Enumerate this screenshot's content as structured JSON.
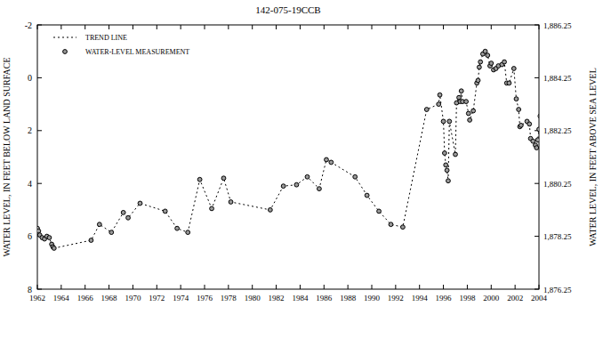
{
  "chart_data": {
    "type": "line",
    "title": "142-075-19CCB",
    "y_label": "WATER LEVEL, IN FEET BELOW LAND SURFACE",
    "y2_label": "WATER LEVEL, IN FEET ABOVE SEA LEVEL",
    "legend": "upper left",
    "grid": false,
    "xlim": [
      1962,
      2004
    ],
    "xticks": [
      1962,
      1964,
      1966,
      1968,
      1970,
      1972,
      1974,
      1976,
      1978,
      1980,
      1982,
      1984,
      1986,
      1988,
      1990,
      1992,
      1994,
      1996,
      1998,
      2000,
      2002,
      2004
    ],
    "ylim": [
      8,
      -2
    ],
    "yticks": [
      -2,
      0,
      2,
      4,
      6,
      8
    ],
    "y2lim": [
      1876.25,
      1886.25
    ],
    "y2ticks": [
      {
        "value": 1876.25,
        "label": "1,876.25"
      },
      {
        "value": 1878.25,
        "label": "1,878.25"
      },
      {
        "value": 1880.25,
        "label": "1,880.25"
      },
      {
        "value": 1882.25,
        "label": "1,882.25"
      },
      {
        "value": 1884.25,
        "label": "1,884.25"
      },
      {
        "value": 1886.25,
        "label": "1,886.25"
      }
    ],
    "x": [
      1962.0,
      1962.1,
      1962.2,
      1962.4,
      1962.6,
      1962.8,
      1963.0,
      1963.2,
      1963.3,
      1963.4,
      1966.5,
      1967.2,
      1968.2,
      1969.2,
      1969.6,
      1970.6,
      1972.7,
      1973.7,
      1974.6,
      1975.6,
      1976.6,
      1977.6,
      1978.2,
      1981.5,
      1982.6,
      1983.7,
      1984.6,
      1985.6,
      1986.2,
      1986.6,
      1988.6,
      1989.6,
      1990.6,
      1991.6,
      1992.6,
      1994.6,
      1995.6,
      1995.7,
      1996.0,
      1996.1,
      1996.2,
      1996.3,
      1996.4,
      1996.5,
      1997.0,
      1997.1,
      1997.3,
      1997.4,
      1997.5,
      1997.6,
      1997.9,
      1998.1,
      1998.2,
      1998.5,
      1998.8,
      1998.9,
      1999.0,
      1999.1,
      1999.3,
      1999.5,
      1999.7,
      1999.9,
      2000.0,
      2000.2,
      2000.4,
      2000.6,
      2000.9,
      2001.1,
      2001.3,
      2001.5,
      2001.9,
      2002.1,
      2002.3,
      2002.4,
      2002.5,
      2003.0,
      2003.2,
      2003.3,
      2003.5,
      2003.7,
      2003.8,
      2003.9,
      2004.0,
      2004.1,
      2004.3
    ],
    "series": [
      {
        "name": "TREND LINE",
        "type": "line",
        "line_style": "dotted",
        "color": "#000000",
        "values": [
          5.7,
          5.8,
          5.95,
          6.05,
          6.1,
          6.0,
          6.05,
          6.3,
          6.4,
          6.45,
          6.15,
          5.55,
          5.85,
          5.1,
          5.3,
          4.75,
          5.05,
          5.7,
          5.85,
          3.85,
          4.95,
          3.8,
          4.7,
          5.0,
          4.1,
          4.05,
          3.75,
          4.2,
          3.1,
          3.2,
          3.75,
          4.45,
          5.05,
          5.55,
          5.65,
          1.2,
          1.0,
          0.65,
          1.65,
          2.85,
          3.3,
          3.5,
          3.9,
          1.65,
          2.9,
          0.95,
          0.75,
          0.9,
          0.5,
          0.9,
          0.9,
          1.35,
          1.6,
          1.25,
          0.2,
          0.1,
          -0.4,
          -0.6,
          -0.9,
          -1.0,
          -0.85,
          -0.45,
          -0.55,
          -0.3,
          -0.35,
          -0.45,
          -0.5,
          -0.6,
          0.2,
          0.2,
          -0.35,
          0.8,
          1.2,
          1.85,
          1.8,
          1.65,
          1.75,
          2.3,
          2.4,
          2.55,
          2.65,
          2.35,
          1.95,
          1.45,
          1.95
        ]
      },
      {
        "name": "WATER-LEVEL MEASUREMENT",
        "type": "scatter",
        "marker": "circle",
        "color": "#9a9a9a",
        "values": [
          5.7,
          5.8,
          5.95,
          6.05,
          6.1,
          6.0,
          6.05,
          6.3,
          6.4,
          6.45,
          6.15,
          5.55,
          5.85,
          5.1,
          5.3,
          4.75,
          5.05,
          5.7,
          5.85,
          3.85,
          4.95,
          3.8,
          4.7,
          5.0,
          4.1,
          4.05,
          3.75,
          4.2,
          3.1,
          3.2,
          3.75,
          4.45,
          5.05,
          5.55,
          5.65,
          1.2,
          1.0,
          0.65,
          1.65,
          2.85,
          3.3,
          3.5,
          3.9,
          1.65,
          2.9,
          0.95,
          0.75,
          0.9,
          0.5,
          0.9,
          0.9,
          1.35,
          1.6,
          1.25,
          0.2,
          0.1,
          -0.4,
          -0.6,
          -0.9,
          -1.0,
          -0.85,
          -0.45,
          -0.55,
          -0.3,
          -0.35,
          -0.45,
          -0.5,
          -0.6,
          0.2,
          0.2,
          -0.35,
          0.8,
          1.2,
          1.85,
          1.8,
          1.65,
          1.75,
          2.3,
          2.4,
          2.55,
          2.65,
          2.35,
          1.95,
          1.45,
          1.95
        ]
      }
    ]
  }
}
